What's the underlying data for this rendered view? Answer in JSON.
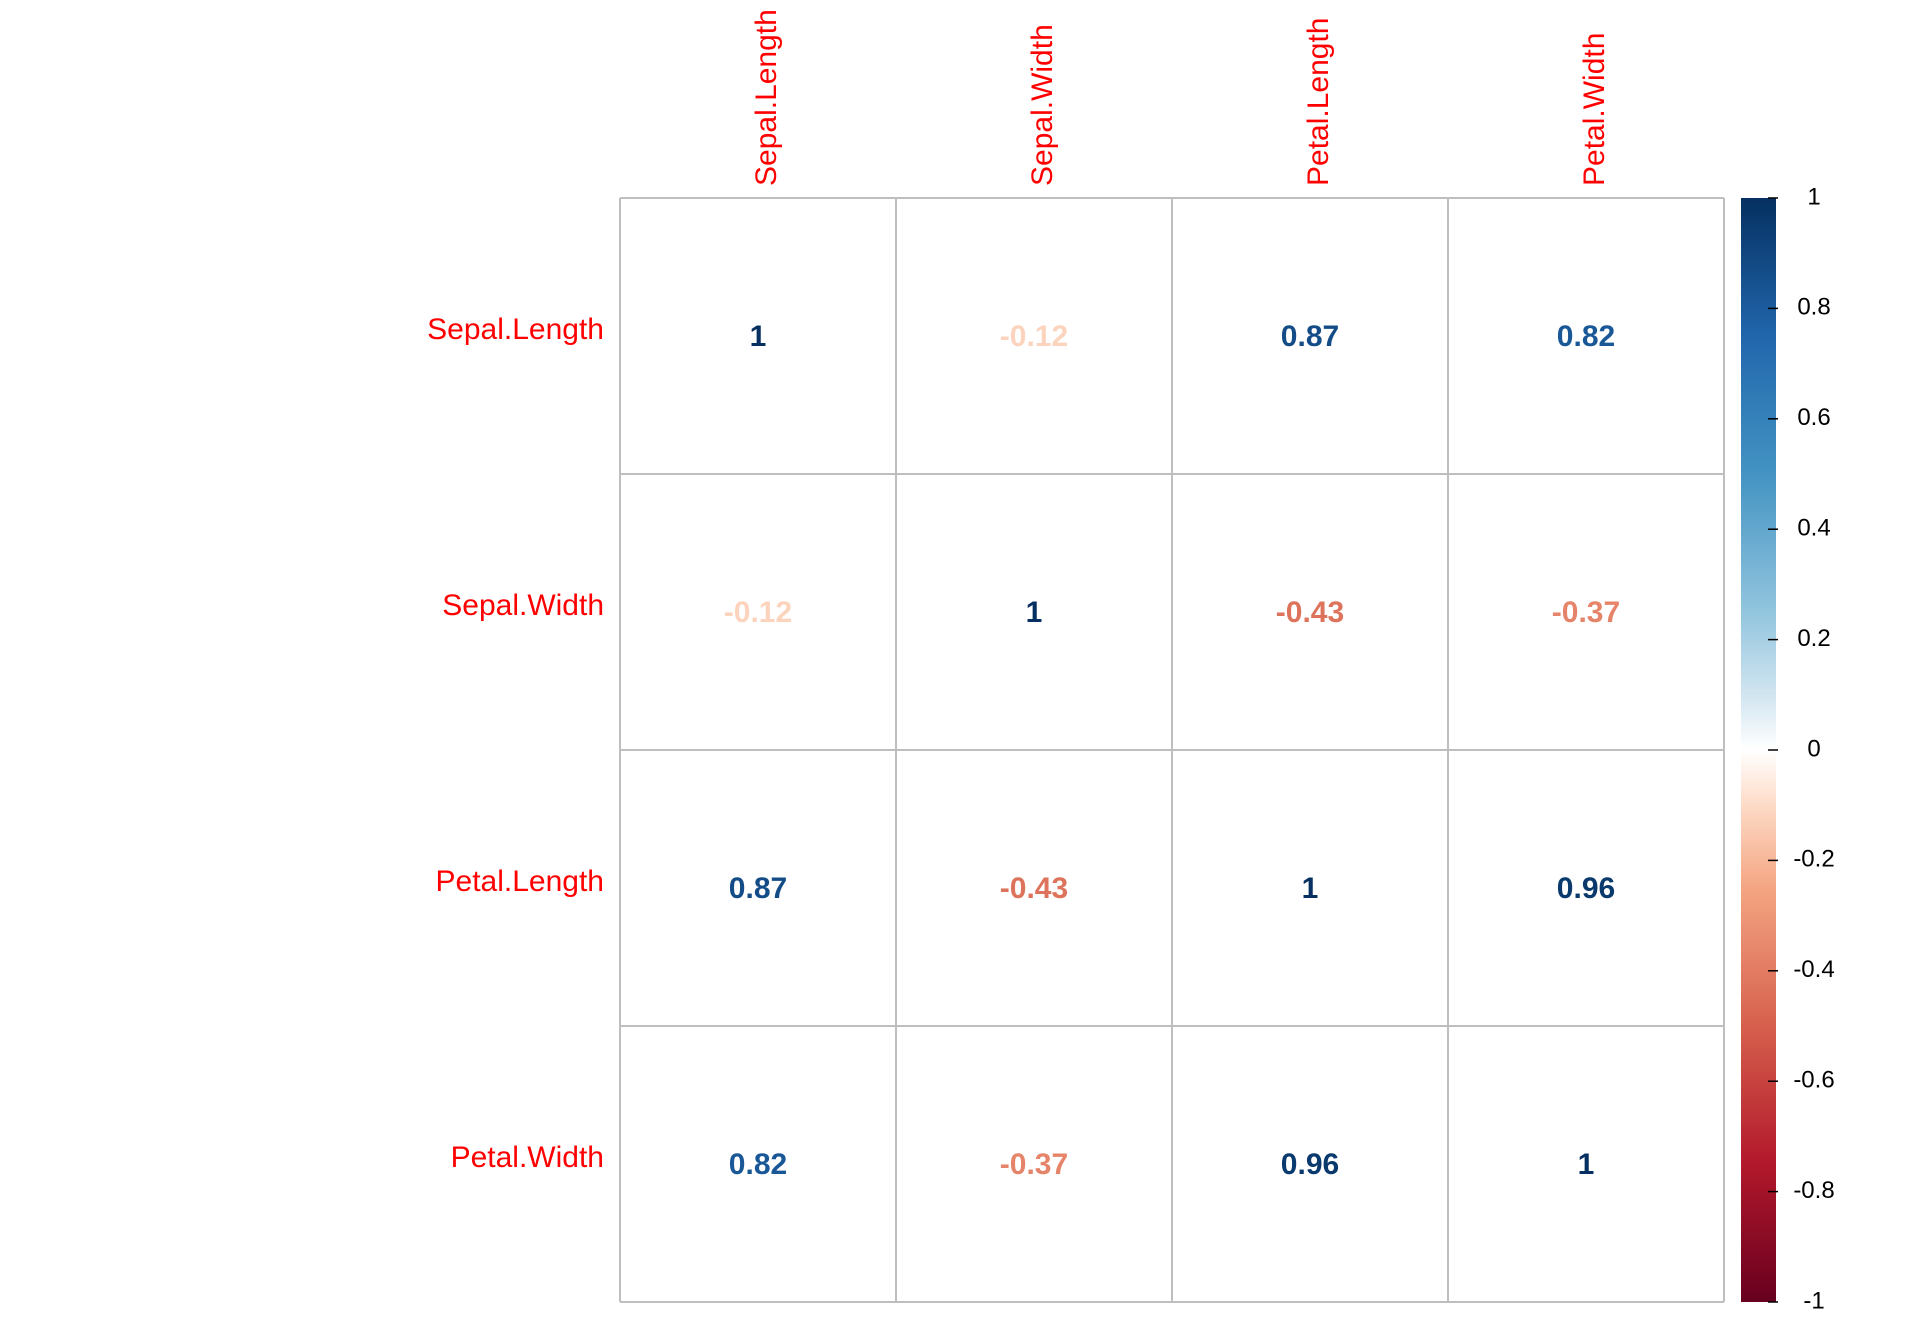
{
  "chart_data": {
    "type": "heatmap",
    "title": "",
    "variables": [
      "Sepal.Length",
      "Sepal.Width",
      "Petal.Length",
      "Petal.Width"
    ],
    "rows": [
      "Sepal.Length",
      "Sepal.Width",
      "Petal.Length",
      "Petal.Width"
    ],
    "columns": [
      "Sepal.Length",
      "Sepal.Width",
      "Petal.Length",
      "Petal.Width"
    ],
    "values": [
      [
        1,
        -0.12,
        0.87,
        0.82
      ],
      [
        -0.12,
        1,
        -0.43,
        -0.37
      ],
      [
        0.87,
        -0.43,
        1,
        0.96
      ],
      [
        0.82,
        -0.37,
        0.96,
        1
      ]
    ],
    "value_labels": [
      [
        "1",
        "-0.12",
        "0.87",
        "0.82"
      ],
      [
        "-0.12",
        "1",
        "-0.43",
        "-0.37"
      ],
      [
        "0.87",
        "-0.43",
        "1",
        "0.96"
      ],
      [
        "0.82",
        "-0.37",
        "0.96",
        "1"
      ]
    ],
    "color_scale": {
      "range": [
        -1,
        1
      ],
      "ticks": [
        1,
        0.8,
        0.6,
        0.4,
        0.2,
        0,
        -0.2,
        -0.4,
        -0.6,
        -0.8,
        -1
      ],
      "tick_labels": [
        "1",
        "0.8",
        "0.6",
        "0.4",
        "0.2",
        "0",
        "-0.2",
        "-0.4",
        "-0.6",
        "-0.8",
        "-1"
      ],
      "stops": [
        {
          "value": -1,
          "color": "#67001F"
        },
        {
          "value": -0.75,
          "color": "#B2182B"
        },
        {
          "value": -0.5,
          "color": "#D6604D"
        },
        {
          "value": -0.25,
          "color": "#F4A582"
        },
        {
          "value": -0.1,
          "color": "#FDDBC7"
        },
        {
          "value": 0,
          "color": "#FFFFFF"
        },
        {
          "value": 0.1,
          "color": "#D1E5F0"
        },
        {
          "value": 0.25,
          "color": "#92C5DE"
        },
        {
          "value": 0.5,
          "color": "#4393C3"
        },
        {
          "value": 0.75,
          "color": "#2166AC"
        },
        {
          "value": 1,
          "color": "#053061"
        }
      ]
    },
    "label_color": "#FF0000",
    "grid_color": "#BEBEBE",
    "legend_position": "right"
  }
}
